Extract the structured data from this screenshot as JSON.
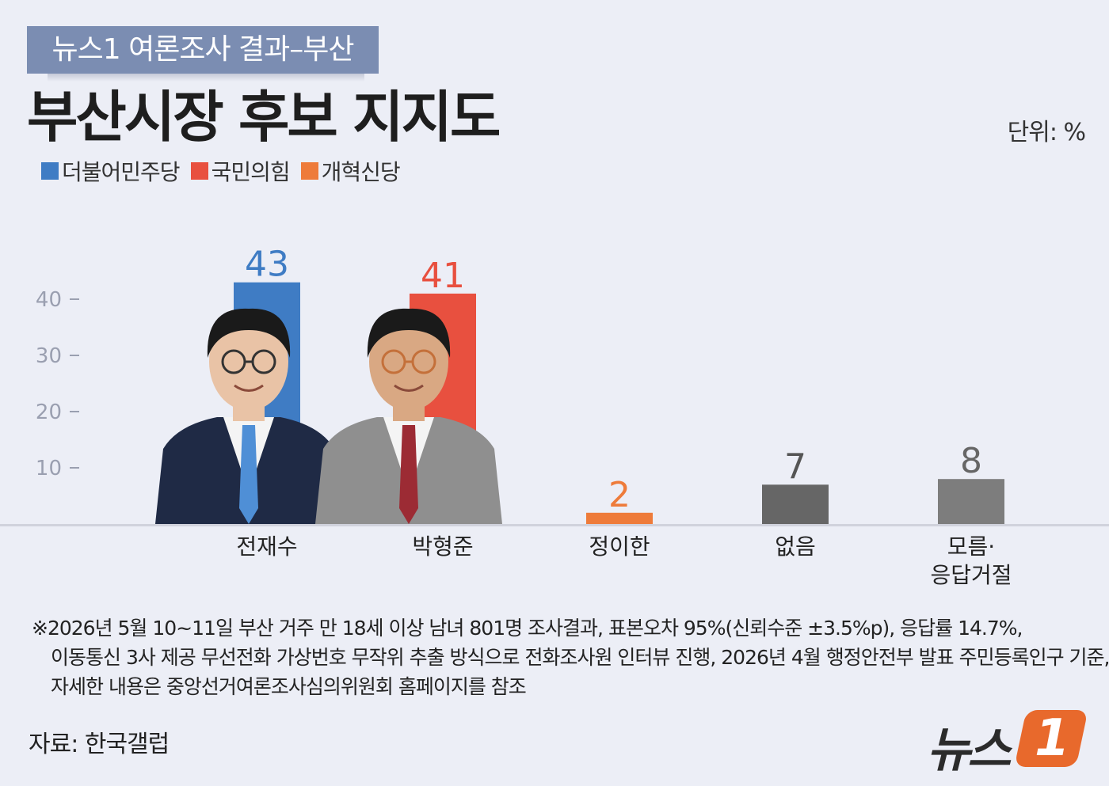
{
  "header": {
    "tag": "뉴스1 여론조사 결과–부산",
    "title": "부산시장 후보 지지도",
    "unit": "단위: %"
  },
  "legend": [
    {
      "label": "더불어민주당",
      "color": "#3f7cc4"
    },
    {
      "label": "국민의힘",
      "color": "#e8503f"
    },
    {
      "label": "개혁신당",
      "color": "#ee7b3a"
    }
  ],
  "chart_data": {
    "type": "bar",
    "categories": [
      "전재수",
      "박형준",
      "정이한",
      "없음",
      "모름·응답거절"
    ],
    "category_lines": [
      [
        "전재수"
      ],
      [
        "박형준"
      ],
      [
        "정이한"
      ],
      [
        "없음"
      ],
      [
        "모름·",
        "응답거절"
      ]
    ],
    "values": [
      43,
      41,
      2,
      7,
      8
    ],
    "value_labels": [
      "43",
      "41",
      "2",
      "7",
      "8"
    ],
    "colors": [
      "#3f7cc4",
      "#e8503f",
      "#ee7b3a",
      "#666666",
      "#7d7d7d"
    ],
    "label_colors": [
      "#3f7cc4",
      "#e8503f",
      "#ee7b3a",
      "#555555",
      "#666666"
    ],
    "yticks": [
      10,
      20,
      30,
      40
    ],
    "ytick_labels": [
      "10",
      "20",
      "30",
      "40"
    ],
    "ylim": [
      0,
      43
    ],
    "title": "부산시장 후보 지지도",
    "xlabel": "",
    "ylabel": ""
  },
  "photos": [
    {
      "name": "candidate-photo-jeon-jaesu",
      "suit": "#1f2a45",
      "tie": "#4f8fd6",
      "skin": "#e9c3a6",
      "hair": "#1a1a1a"
    },
    {
      "name": "candidate-photo-park-hyeongjun",
      "suit": "#8f8f8f",
      "tie": "#9c2b34",
      "skin": "#d9a883",
      "hair": "#1a1a1a"
    }
  ],
  "footnote": {
    "line1": "※2026년 5월 10~11일 부산 거주 만 18세 이상 남녀 801명 조사결과, 표본오차 95%(신뢰수준 ±3.5%p), 응답률  14.7%,",
    "line2": "이동통신 3사 제공 무선전화 가상번호 무작위 추출 방식으로 전화조사원 인터뷰 진행, 2026년 4월 행정안전부 발표 주민등록인구 기준,",
    "line3": "자세한 내용은 중앙선거여론조사심의위원회 홈페이지를 참조"
  },
  "source": "자료: 한국갤럽",
  "logo": {
    "text": "뉴스",
    "badge": "1"
  }
}
